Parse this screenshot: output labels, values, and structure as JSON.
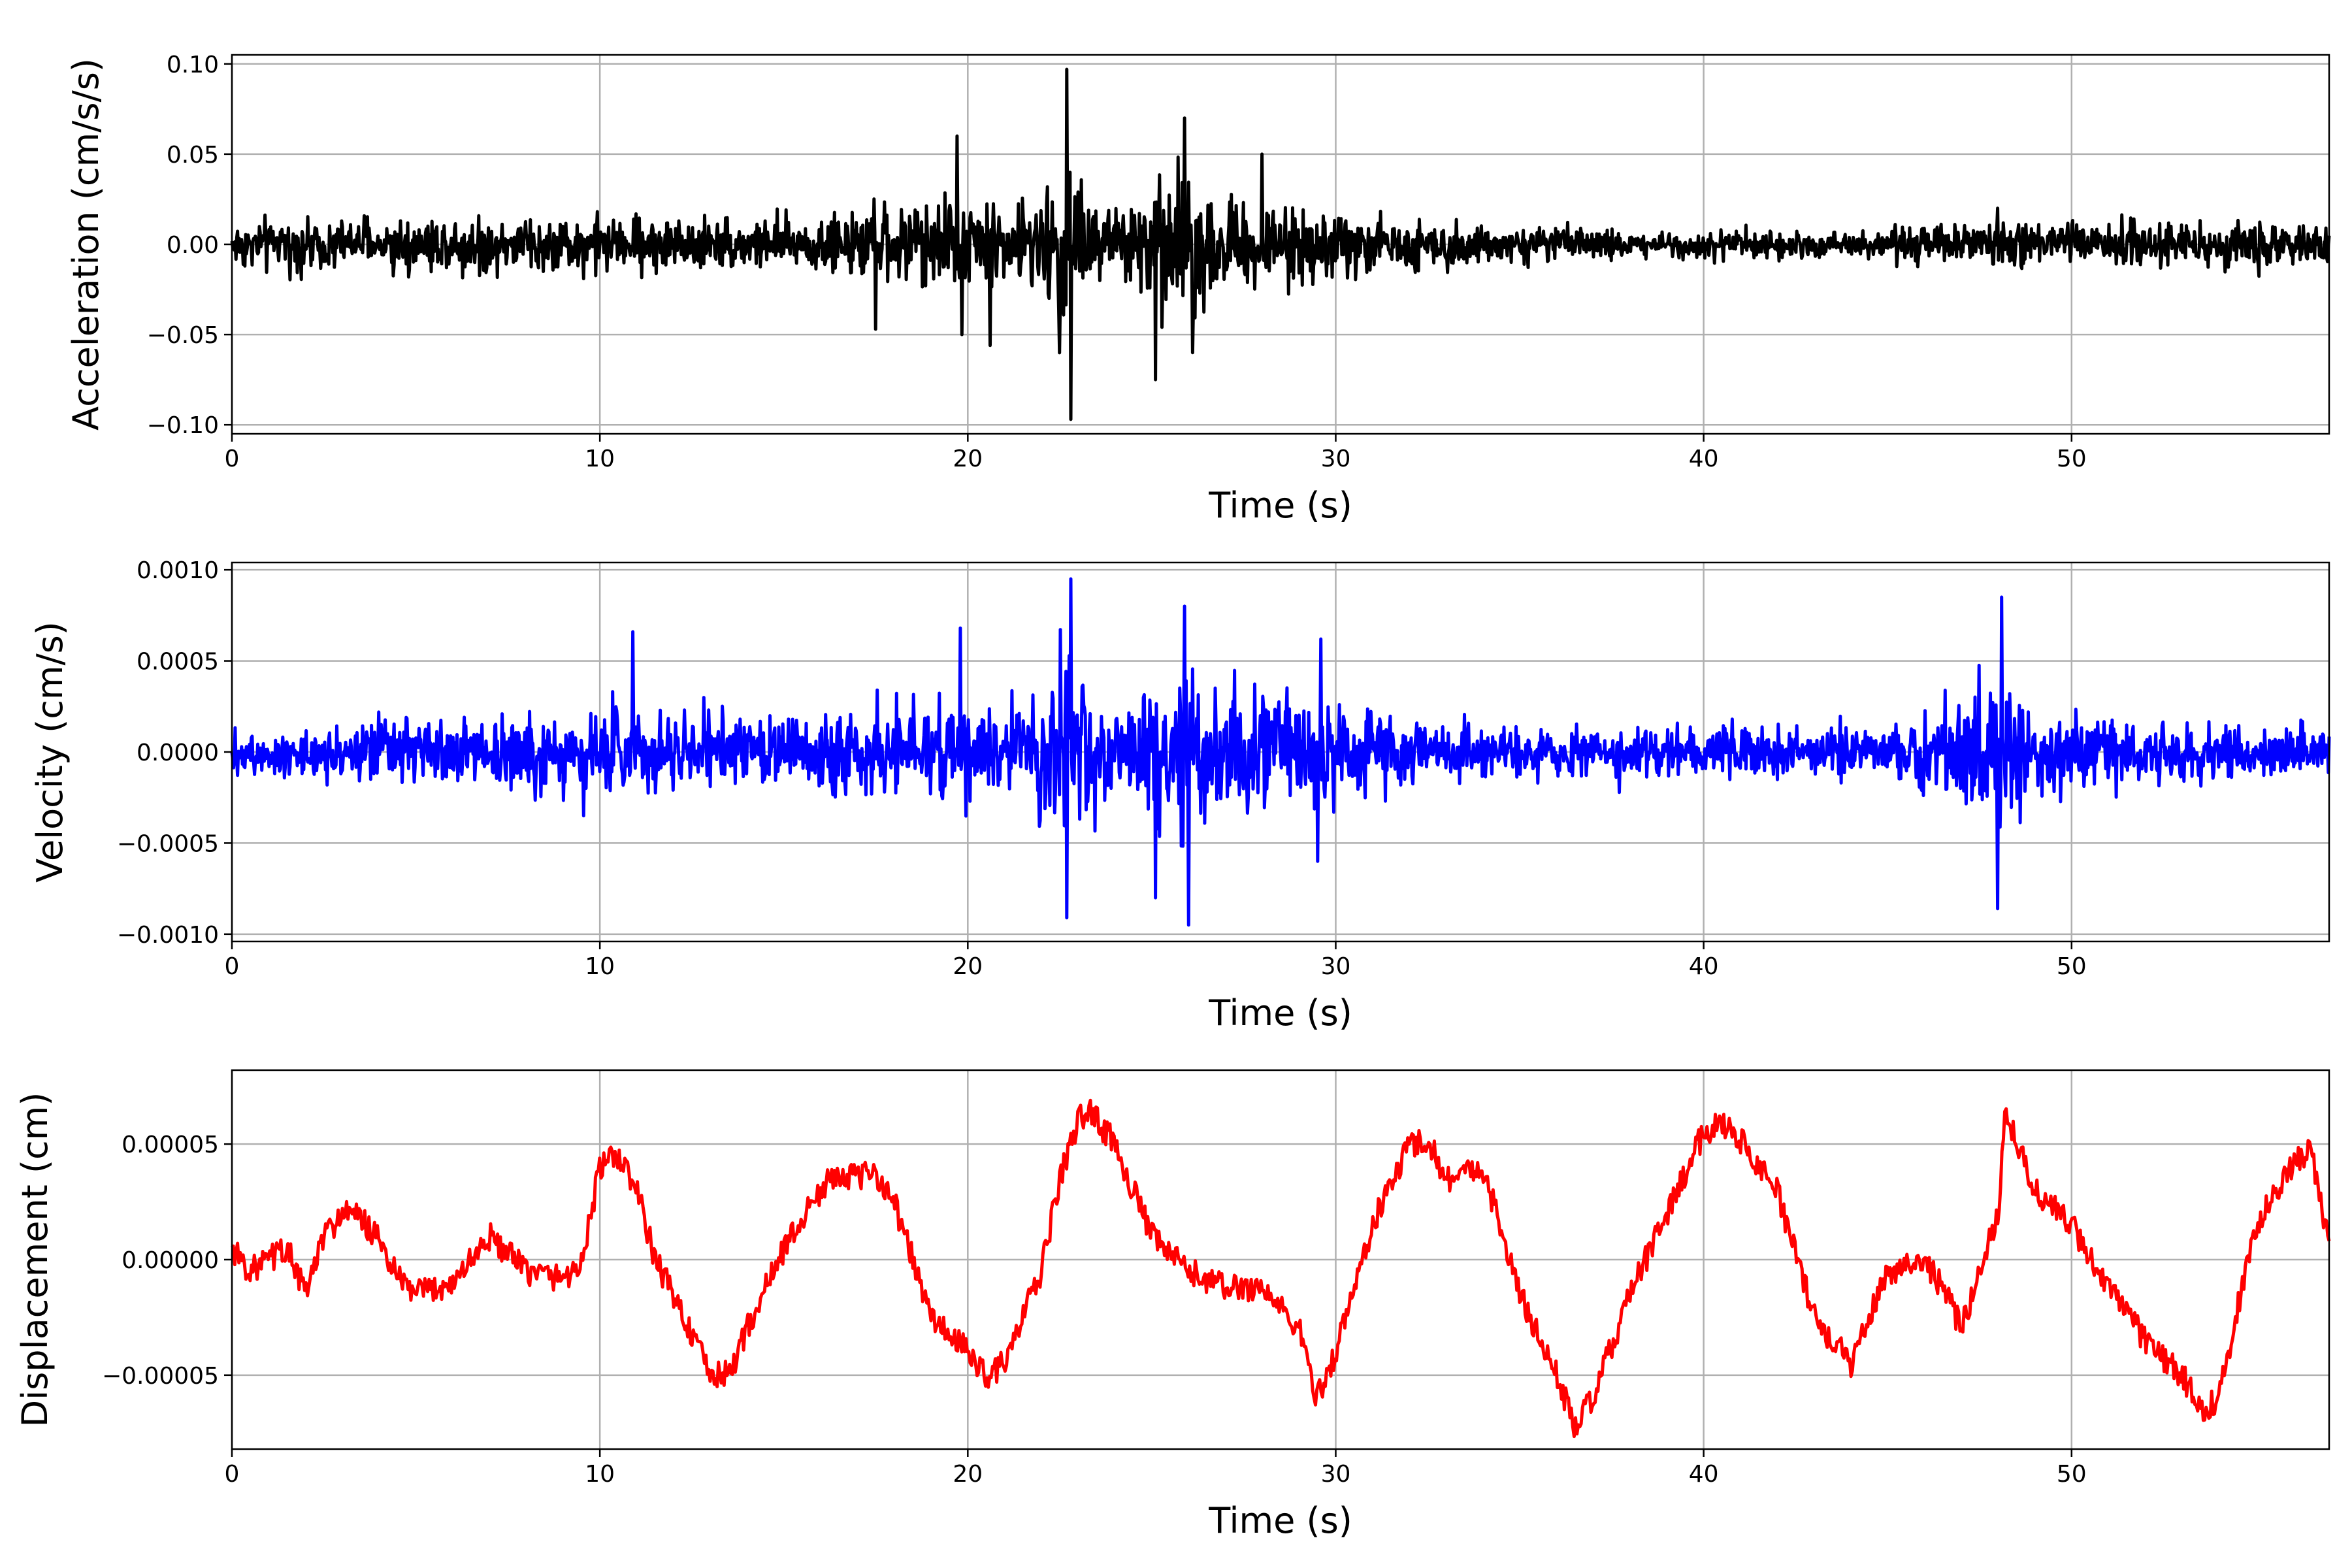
{
  "chart_data": [
    {
      "type": "line",
      "ylabel": "Acceleration (cm/s/s)",
      "xlabel": "Time (s)",
      "xlim": [
        0,
        57
      ],
      "ylim": [
        -0.105,
        0.105
      ],
      "grid": true,
      "color": "#000000",
      "x_ticks": [
        {
          "value": 0,
          "label": "0"
        },
        {
          "value": 10,
          "label": "10"
        },
        {
          "value": 20,
          "label": "20"
        },
        {
          "value": 30,
          "label": "30"
        },
        {
          "value": 40,
          "label": "40"
        },
        {
          "value": 50,
          "label": "50"
        }
      ],
      "y_ticks": [
        {
          "value": 0.1,
          "label": "0.10"
        },
        {
          "value": 0.05,
          "label": "0.05"
        },
        {
          "value": 0.0,
          "label": "0.00"
        },
        {
          "value": -0.05,
          "label": "−0.05"
        },
        {
          "value": -0.1,
          "label": "−0.10"
        }
      ],
      "envelope": {
        "x": [
          0,
          5,
          10,
          15,
          17.5,
          19.5,
          20.5,
          22,
          22.7,
          23.5,
          25,
          26,
          28,
          30,
          35,
          40,
          45,
          48,
          50,
          53,
          57
        ],
        "amp": [
          0.022,
          0.028,
          0.028,
          0.026,
          0.035,
          0.045,
          0.04,
          0.045,
          0.095,
          0.045,
          0.062,
          0.068,
          0.042,
          0.03,
          0.016,
          0.014,
          0.013,
          0.025,
          0.022,
          0.024,
          0.018
        ]
      },
      "peaks": [
        {
          "x": 22.7,
          "y": 0.097
        },
        {
          "x": 22.8,
          "y": -0.097
        },
        {
          "x": 19.7,
          "y": 0.06
        },
        {
          "x": 19.85,
          "y": -0.05
        },
        {
          "x": 25.1,
          "y": -0.075
        },
        {
          "x": 25.9,
          "y": 0.07
        },
        {
          "x": 28.0,
          "y": 0.05
        },
        {
          "x": 20.6,
          "y": -0.056
        },
        {
          "x": 17.5,
          "y": -0.047
        },
        {
          "x": 26.1,
          "y": -0.06
        }
      ]
    },
    {
      "type": "line",
      "ylabel": "Velocity (cm/s)",
      "xlabel": "Time (s)",
      "xlim": [
        0,
        57
      ],
      "ylim": [
        -0.00104,
        0.00104
      ],
      "grid": true,
      "color": "#0000ff",
      "x_ticks": [
        {
          "value": 0,
          "label": "0"
        },
        {
          "value": 10,
          "label": "10"
        },
        {
          "value": 20,
          "label": "20"
        },
        {
          "value": 30,
          "label": "30"
        },
        {
          "value": 40,
          "label": "40"
        },
        {
          "value": 50,
          "label": "50"
        }
      ],
      "y_ticks": [
        {
          "value": 0.001,
          "label": "0.0010"
        },
        {
          "value": 0.0005,
          "label": "0.0005"
        },
        {
          "value": 0.0,
          "label": "0.0000"
        },
        {
          "value": -0.0005,
          "label": "−0.0005"
        },
        {
          "value": -0.001,
          "label": "−0.0010"
        }
      ],
      "envelope": {
        "x": [
          0,
          5,
          7,
          10,
          11,
          15,
          19.5,
          21,
          22.7,
          24,
          25.5,
          26,
          29.5,
          32,
          36,
          40,
          45,
          48,
          49,
          52,
          57
        ],
        "amp": [
          0.00022,
          0.00032,
          0.00035,
          0.00045,
          0.0004,
          0.00035,
          0.00055,
          0.00045,
          0.0009,
          0.0004,
          0.00075,
          0.00085,
          0.00055,
          0.0003,
          0.00025,
          0.00028,
          0.00022,
          0.00075,
          0.0004,
          0.00035,
          0.00022
        ]
      },
      "peaks": [
        {
          "x": 22.8,
          "y": 0.00095
        },
        {
          "x": 22.7,
          "y": -0.00091
        },
        {
          "x": 26.0,
          "y": -0.00095
        },
        {
          "x": 25.9,
          "y": 0.0008
        },
        {
          "x": 48.1,
          "y": 0.00085
        },
        {
          "x": 48.0,
          "y": -0.00086
        },
        {
          "x": 19.8,
          "y": 0.00068
        },
        {
          "x": 25.1,
          "y": -0.0008
        },
        {
          "x": 29.6,
          "y": 0.00062
        },
        {
          "x": 29.5,
          "y": -0.0006
        },
        {
          "x": 10.9,
          "y": 0.00066
        }
      ]
    },
    {
      "type": "line",
      "ylabel": "Displacement (cm)",
      "xlabel": "Time (s)",
      "xlim": [
        0,
        57
      ],
      "ylim": [
        -8.2e-05,
        8.2e-05
      ],
      "grid": true,
      "color": "#ff0000",
      "x_ticks": [
        {
          "value": 0,
          "label": "0"
        },
        {
          "value": 10,
          "label": "10"
        },
        {
          "value": 20,
          "label": "20"
        },
        {
          "value": 30,
          "label": "30"
        },
        {
          "value": 40,
          "label": "40"
        },
        {
          "value": 50,
          "label": "50"
        }
      ],
      "y_ticks": [
        {
          "value": 5e-05,
          "label": "0.00005"
        },
        {
          "value": 0.0,
          "label": "0.00000"
        },
        {
          "value": -5e-05,
          "label": "−0.00005"
        }
      ],
      "x": [
        0,
        0.5,
        1.0,
        1.5,
        2.0,
        2.5,
        3.0,
        3.5,
        4.0,
        4.5,
        5.0,
        6.0,
        7.0,
        8.0,
        9.0,
        9.5,
        10.0,
        10.5,
        11.0,
        11.5,
        12.0,
        13.0,
        13.5,
        14.0,
        15.0,
        16.0,
        16.5,
        17.0,
        17.5,
        18.0,
        19.0,
        20.0,
        20.5,
        21.0,
        22.0,
        22.5,
        23.0,
        23.3,
        24.0,
        25.0,
        26.0,
        27.0,
        28.0,
        29.0,
        29.5,
        30.0,
        31.0,
        32.0,
        32.5,
        33.0,
        34.0,
        35.0,
        36.0,
        36.5,
        37.0,
        38.0,
        39.0,
        40.0,
        40.5,
        41.0,
        42.0,
        43.0,
        44.0,
        45.0,
        46.0,
        46.5,
        47.0,
        48.0,
        48.2,
        49.0,
        50.0,
        51.0,
        52.0,
        53.0,
        53.5,
        54.0,
        55.0,
        56.0,
        56.5,
        57.0
      ],
      "y": [
        5e-06,
        -5e-06,
        0.0,
        5e-06,
        -1.5e-05,
        1e-05,
        2e-05,
        1.8e-05,
        8e-06,
        -8e-06,
        -1.5e-05,
        -1e-05,
        1e-05,
        -5e-06,
        -8e-06,
        -2e-06,
        4e-05,
        4.5e-05,
        3e-05,
        0.0,
        -1.5e-05,
        -5e-05,
        -5e-05,
        -3e-05,
        5e-06,
        3e-05,
        3.8e-05,
        3.5e-05,
        3.8e-05,
        2.5e-05,
        -2.5e-05,
        -4e-05,
        -5e-05,
        -4.5e-05,
        -5e-06,
        3.5e-05,
        6e-05,
        6.5e-05,
        5e-05,
        1e-05,
        -5e-06,
        -1.2e-05,
        -1.2e-05,
        -3e-05,
        -6e-05,
        -4e-05,
        1.5e-05,
        5e-05,
        5.2e-05,
        3.5e-05,
        4e-05,
        -1.5e-05,
        -5e-05,
        -7.2e-05,
        -6e-05,
        -1.5e-05,
        2e-05,
        5.5e-05,
        6e-05,
        5.2e-05,
        3e-05,
        -2.5e-05,
        -4.5e-05,
        -5e-06,
        0.0,
        -1.2e-05,
        -3e-05,
        2e-05,
        6.5e-05,
        3e-05,
        1.5e-05,
        -1.2e-05,
        -3.5e-05,
        -5e-05,
        -6.5e-05,
        -6e-05,
        1.5e-05,
        4e-05,
        4.8e-05,
        5e-06
      ]
    }
  ]
}
